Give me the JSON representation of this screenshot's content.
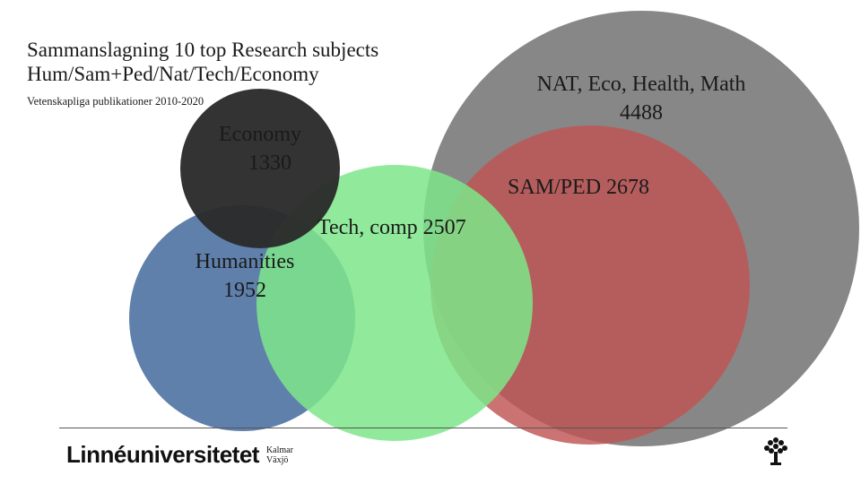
{
  "slide": {
    "title_line1": "Sammanslagning 10 top Research subjects",
    "title_line2": "Hum/Sam+Ped/Nat/Tech/Economy",
    "subtitle": "Vetenskapliga publikationer 2010-2020"
  },
  "venn": {
    "circles": [
      {
        "key": "nat",
        "label": "NAT, Eco, Health, Math",
        "value": 4488,
        "value_text": "4488",
        "color": "#7a7a7a"
      },
      {
        "key": "sam",
        "label": "SAM/PED 2678",
        "value": 2678,
        "color": "#c05454"
      },
      {
        "key": "hum",
        "label": "Humanities",
        "value": 1952,
        "value_text": "1952",
        "color": "#4f72a3"
      },
      {
        "key": "tech",
        "label": "Tech, comp 2507",
        "value": 2507,
        "color": "#7ee68a"
      },
      {
        "key": "econ",
        "label": "Economy",
        "value": 1330,
        "value_text": "1330",
        "color": "#2b2b2b"
      }
    ]
  },
  "footer": {
    "logo_text": "Linnéuniversitetet",
    "campus_1": "Kalmar",
    "campus_2": "Växjö",
    "logo_icon": "tree-icon"
  }
}
